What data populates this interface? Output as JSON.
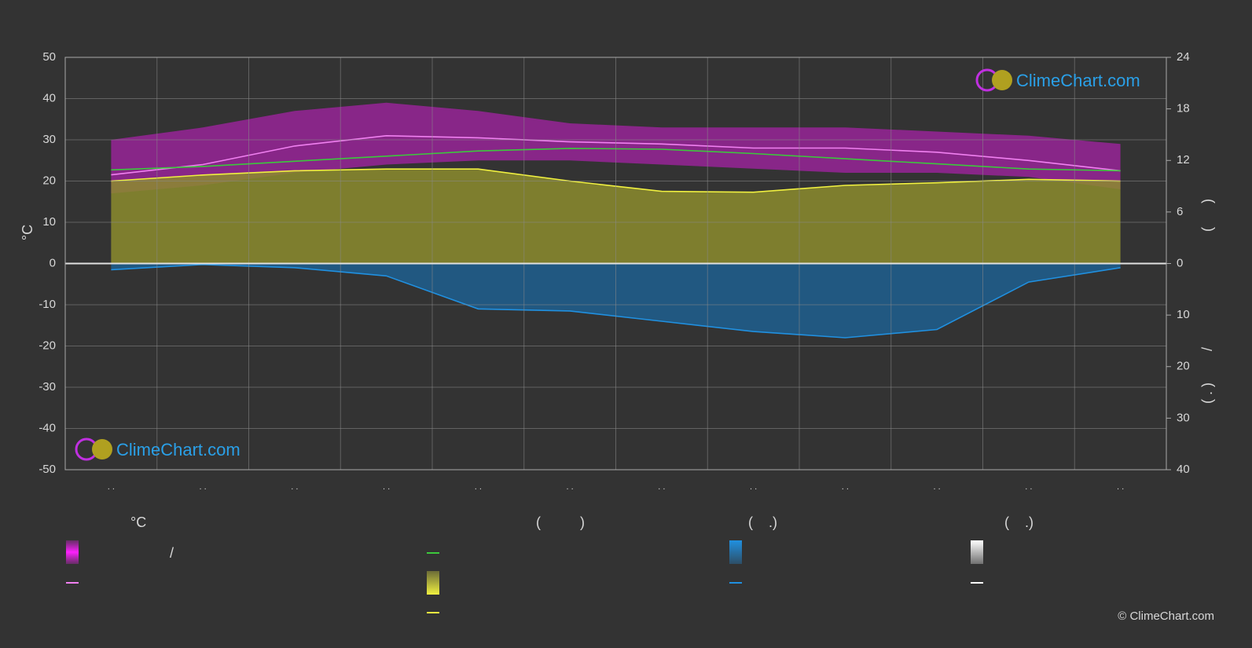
{
  "chart_data": {
    "type": "line",
    "categories": [
      ". .",
      ". .",
      ". .",
      ". .",
      ". .",
      ". .",
      ". .",
      ". .",
      ". .",
      ". .",
      ". .",
      ". ."
    ],
    "ylabel": "°C",
    "y2label": "(      )",
    "y3label": "( . )        /",
    "ylim": [
      -50,
      50
    ],
    "yticks": [
      50,
      40,
      30,
      20,
      10,
      0,
      -10,
      -20,
      -30,
      -40,
      -50
    ],
    "y2lim": [
      0,
      24
    ],
    "y2ticks": [
      24,
      18,
      12,
      6,
      0
    ],
    "y3lim": [
      0,
      40
    ],
    "y3ticks": [
      10,
      20,
      30,
      40
    ],
    "grid": true,
    "series": [
      {
        "type": "band",
        "color": "#c21ec2",
        "values": [
          30,
          33,
          37,
          39,
          37,
          34,
          33,
          33,
          33,
          32,
          31,
          29
        ],
        "lower": [
          17,
          19,
          22,
          24,
          25,
          25,
          24,
          23,
          22,
          22,
          21,
          18
        ]
      },
      {
        "type": "area",
        "axis": "y2",
        "color": "#8c8c2e",
        "line_color": "#f0f040",
        "values": [
          9.6,
          10.3,
          10.8,
          11,
          11,
          9.6,
          8.4,
          8.3,
          9.1,
          9.4,
          9.8,
          9.6
        ]
      },
      {
        "type": "area",
        "axis": "y3",
        "color": "#1f5f8f",
        "line_color": "#2090e0",
        "values": [
          1.2,
          0.2,
          0.8,
          2.4,
          8.8,
          9.2,
          11.2,
          13.2,
          14.4,
          12.8,
          3.6,
          0.8
        ]
      },
      {
        "type": "line",
        "color": "#f080f0",
        "values": [
          21.5,
          24,
          28.5,
          31,
          30.5,
          29.5,
          29,
          28,
          28,
          27,
          25,
          22.5
        ]
      },
      {
        "type": "line",
        "axis": "y2",
        "color": "#3cc83c",
        "values": [
          10.9,
          11.3,
          11.9,
          12.5,
          13.1,
          13.4,
          13.3,
          12.8,
          12.2,
          11.6,
          11,
          10.8
        ]
      }
    ],
    "logo_text": "ClimeChart.com"
  },
  "legend": {
    "headings": [
      "°C",
      "(          )",
      "(    .)",
      "(    .)"
    ],
    "items": [
      "/"
    ]
  },
  "footer": "© ClimeChart.com"
}
